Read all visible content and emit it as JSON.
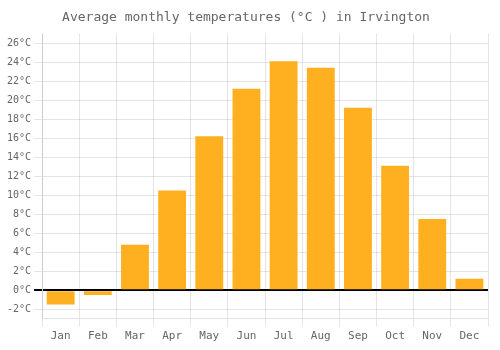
{
  "chart_data": {
    "type": "bar",
    "title": "Average monthly temperatures (°C ) in Irvington",
    "categories": [
      "Jan",
      "Feb",
      "Mar",
      "Apr",
      "May",
      "Jun",
      "Jul",
      "Aug",
      "Sep",
      "Oct",
      "Nov",
      "Dec"
    ],
    "values": [
      -1.5,
      -0.5,
      4.8,
      10.5,
      16.2,
      21.2,
      24.1,
      23.4,
      19.2,
      13.1,
      7.5,
      1.2
    ],
    "color": "#FFB020",
    "ylim": [
      -3,
      27
    ],
    "yticks": [
      {
        "value": -2,
        "label": "-2°C"
      },
      {
        "value": 0,
        "label": "0°C"
      },
      {
        "value": 2,
        "label": "2°C"
      },
      {
        "value": 4,
        "label": "4°C"
      },
      {
        "value": 6,
        "label": "6°C"
      },
      {
        "value": 8,
        "label": "8°C"
      },
      {
        "value": 10,
        "label": "10°C"
      },
      {
        "value": 12,
        "label": "12°C"
      },
      {
        "value": 14,
        "label": "14°C"
      },
      {
        "value": 16,
        "label": "16°C"
      },
      {
        "value": 18,
        "label": "18°C"
      },
      {
        "value": 20,
        "label": "20°C"
      },
      {
        "value": 22,
        "label": "22°C"
      },
      {
        "value": 24,
        "label": "24°C"
      },
      {
        "value": 26,
        "label": "26°C"
      }
    ],
    "grid": true
  }
}
